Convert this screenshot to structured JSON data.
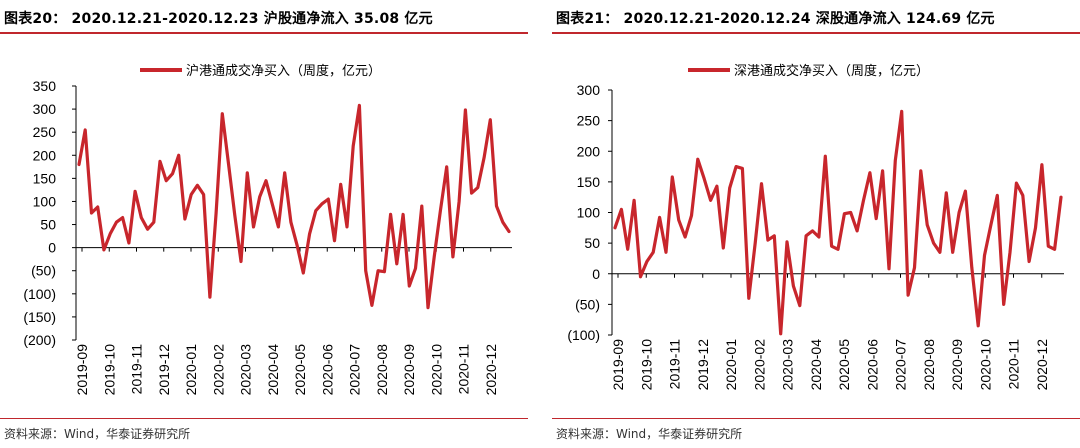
{
  "colors": {
    "accent": "#c0272d",
    "line": "#c8262c",
    "text": "#000000"
  },
  "panels": [
    {
      "title": "图表20： 2020.12.21-2020.12.23 沪股通净流入 35.08 亿元",
      "source": "资料来源：Wind，华泰证券研究所"
    },
    {
      "title": "图表21： 2020.12.21-2020.12.24 深股通净流入 124.69 亿元",
      "source": "资料来源：Wind，华泰证券研究所"
    }
  ],
  "chart_data": [
    {
      "type": "line",
      "title": "2020.12.21-2020.12.23 沪股通净流入 35.08 亿元",
      "legend": "沪港通成交净买入（周度，亿元）",
      "legend_position": "top",
      "ylim": [
        -200,
        350
      ],
      "yticks": [
        350,
        300,
        250,
        200,
        150,
        100,
        50,
        0,
        -50,
        -100,
        -150,
        -200
      ],
      "ytick_labels": [
        "350",
        "300",
        "250",
        "200",
        "150",
        "100",
        "50",
        "0",
        "(50)",
        "(100)",
        "(150)",
        "(200)"
      ],
      "xtick_labels": [
        "2019-09",
        "2019-10",
        "2019-11",
        "2019-12",
        "2020-01",
        "2020-02",
        "2020-03",
        "2020-04",
        "2020-05",
        "2020-06",
        "2020-07",
        "2020-08",
        "2020-09",
        "2020-10",
        "2020-11",
        "2020-12"
      ],
      "series": [
        {
          "name": "沪港通成交净买入（周度，亿元）",
          "values": [
            180,
            255,
            75,
            88,
            -5,
            30,
            55,
            65,
            10,
            122,
            65,
            40,
            55,
            187,
            145,
            160,
            200,
            62,
            115,
            135,
            115,
            -107,
            75,
            290,
            180,
            70,
            -30,
            162,
            45,
            110,
            145,
            95,
            45,
            162,
            55,
            5,
            -55,
            30,
            80,
            95,
            105,
            15,
            137,
            45,
            220,
            308,
            -50,
            -125,
            -50,
            -52,
            72,
            -35,
            72,
            -83,
            -45,
            90,
            -130,
            -20,
            80,
            175,
            -20,
            100,
            298,
            118,
            130,
            195,
            277,
            90,
            55,
            35
          ]
        }
      ]
    },
    {
      "type": "line",
      "title": "2020.12.21-2020.12.24 深股通净流入 124.69 亿元",
      "legend": "深港通成交净买入（周度，亿元）",
      "legend_position": "top",
      "ylim": [
        -100,
        300
      ],
      "yticks": [
        300,
        250,
        200,
        150,
        100,
        50,
        0,
        -50,
        -100
      ],
      "ytick_labels": [
        "300",
        "250",
        "200",
        "150",
        "100",
        "50",
        "0",
        "(50)",
        "(100)"
      ],
      "xtick_labels": [
        "2019-09",
        "2019-10",
        "2019-11",
        "2019-12",
        "2020-01",
        "2020-02",
        "2020-03",
        "2020-04",
        "2020-05",
        "2020-06",
        "2020-07",
        "2020-08",
        "2020-09",
        "2020-10",
        "2020-11",
        "2020-12"
      ],
      "series": [
        {
          "name": "深港通成交净买入（周度，亿元）",
          "values": [
            75,
            105,
            40,
            120,
            -5,
            20,
            35,
            92,
            35,
            158,
            88,
            60,
            95,
            187,
            155,
            120,
            143,
            42,
            140,
            175,
            172,
            -40,
            50,
            147,
            55,
            62,
            -98,
            52,
            -20,
            -52,
            62,
            70,
            60,
            192,
            45,
            40,
            98,
            100,
            70,
            120,
            165,
            90,
            168,
            8,
            185,
            265,
            -35,
            10,
            168,
            80,
            50,
            35,
            132,
            35,
            100,
            135,
            10,
            -85,
            30,
            80,
            128,
            -50,
            35,
            148,
            128,
            20,
            75,
            178,
            45,
            40,
            125
          ]
        }
      ]
    }
  ]
}
